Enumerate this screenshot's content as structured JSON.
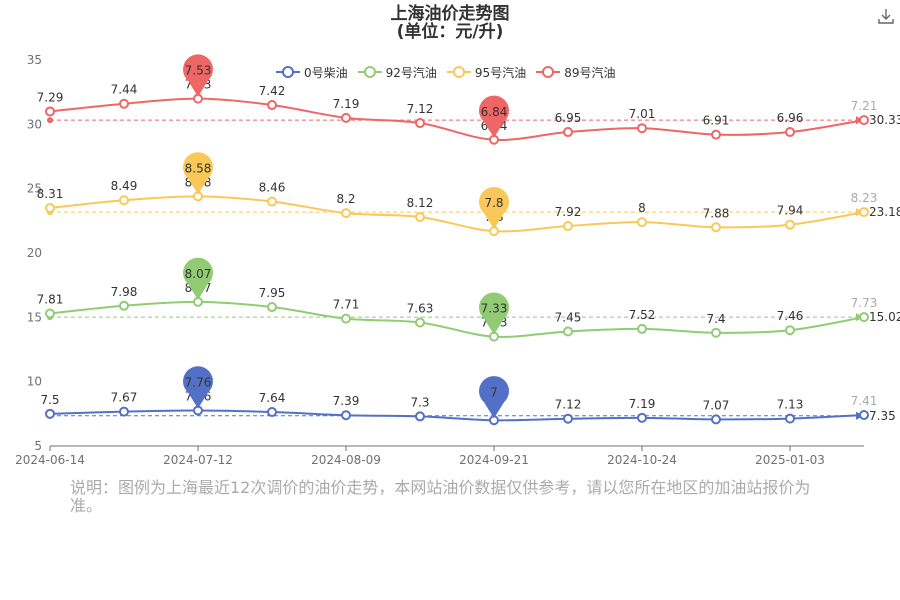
{
  "title": "上海油价走势图",
  "subtitle": "(单位：元/升)",
  "download_icon": "download-icon",
  "note": "说明：图例为上海最近12次调价的油价走势，本网站油价数据仅供参考，请以您所在地区的加油站报价为准。",
  "legend": [
    {
      "name": "0号柴油",
      "color": "#5470c6"
    },
    {
      "name": "92号汽油",
      "color": "#91cc75"
    },
    {
      "name": "95号汽油",
      "color": "#fac858"
    },
    {
      "name": "89号汽油",
      "color": "#ee6666"
    }
  ],
  "chart_data": {
    "type": "line",
    "title": "上海油价走势图",
    "subtitle": "(单位：元/升)",
    "x_ticks": [
      "2024-06-14",
      "2024-07-12",
      "2024-08-09",
      "2024-09-21",
      "2024-10-24",
      "2025-01-03"
    ],
    "y_ticks": [
      5,
      10,
      15,
      20,
      25,
      30,
      35
    ],
    "grid": false,
    "legend_position": "top",
    "series": [
      {
        "name": "89号汽油",
        "color": "#ee6666",
        "labels": [
          "7.29",
          "7.44",
          "7.53",
          "7.42",
          "7.19",
          "7.12",
          "6.84",
          "6.95",
          "7.01",
          "6.91",
          "6.96",
          "7.21"
        ],
        "values": [
          31.0,
          31.6,
          32.0,
          31.5,
          30.5,
          30.1,
          28.8,
          29.4,
          29.7,
          29.2,
          29.4,
          30.33
        ],
        "max_label": "7.53",
        "min_label": "6.84",
        "average": "30.33"
      },
      {
        "name": "95号汽油",
        "color": "#fac858",
        "labels": [
          "8.31",
          "8.49",
          "8.58",
          "8.46",
          "8.2",
          "8.12",
          "7.8",
          "7.92",
          "8",
          "7.88",
          "7.94",
          "8.23"
        ],
        "values": [
          23.5,
          24.1,
          24.4,
          24.0,
          23.1,
          22.8,
          21.7,
          22.1,
          22.4,
          22.0,
          22.2,
          23.18
        ],
        "max_label": "8.58",
        "min_label": "7.8",
        "average": "23.18"
      },
      {
        "name": "92号汽油",
        "color": "#91cc75",
        "labels": [
          "7.81",
          "7.98",
          "8.07",
          "7.95",
          "7.71",
          "7.63",
          "7.33",
          "7.45",
          "7.52",
          "7.4",
          "7.46",
          "7.73"
        ],
        "values": [
          15.3,
          15.9,
          16.2,
          15.8,
          14.9,
          14.6,
          13.5,
          13.9,
          14.1,
          13.8,
          14.0,
          15.02
        ],
        "max_label": "8.07",
        "min_label": "7.33",
        "average": "15.02"
      },
      {
        "name": "0号柴油",
        "color": "#5470c6",
        "labels": [
          "7.5",
          "7.67",
          "7.76",
          "7.64",
          "7.39",
          "7.3",
          "7",
          "7.12",
          "7.19",
          "7.07",
          "7.13",
          "7.41"
        ],
        "values": [
          7.5,
          7.67,
          7.76,
          7.64,
          7.39,
          7.3,
          7.0,
          7.12,
          7.19,
          7.07,
          7.13,
          7.41
        ],
        "max_label": "7.76",
        "min_label": "7",
        "average": "7.35"
      }
    ]
  }
}
